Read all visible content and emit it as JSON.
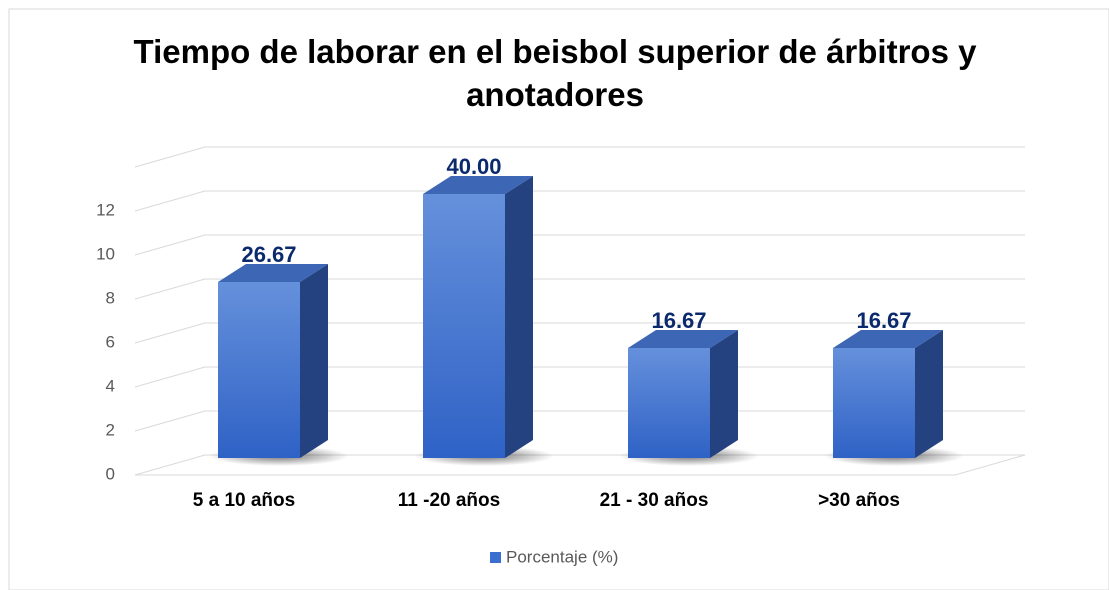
{
  "chart_data": {
    "type": "bar3d",
    "title": "Tiempo de laborar en el beisbol superior de árbitros y anotadores",
    "categories": [
      "5 a 10 años",
      "11 -20 años",
      "21 - 30 años",
      ">30 años"
    ],
    "series": [
      {
        "name": "Porcentaje (%)",
        "color": "#3a6fd0",
        "values": [
          8,
          12,
          5,
          5
        ],
        "data_labels": [
          "26.67",
          "40.00",
          "16.67",
          "16.67"
        ]
      }
    ],
    "ylim": [
      0,
      14
    ],
    "yticks": [
      0,
      2,
      4,
      6,
      8,
      10,
      12
    ],
    "grid": true,
    "legend": "bottom"
  }
}
